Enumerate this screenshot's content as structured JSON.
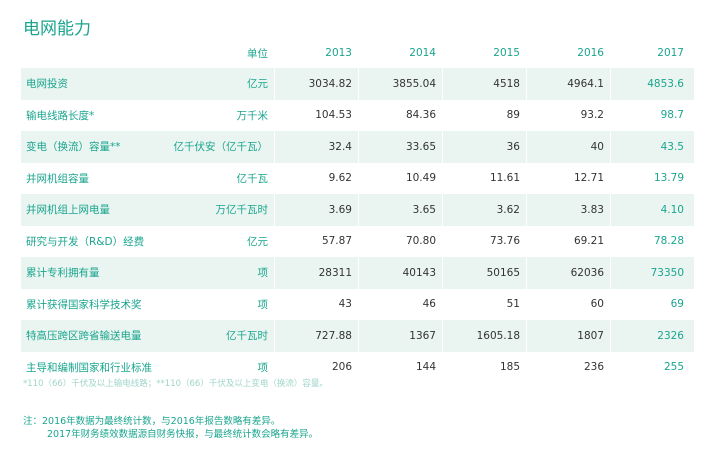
{
  "title": "电网能力",
  "header": {
    "unit": "单位",
    "years": [
      "2013",
      "2014",
      "2015",
      "2016",
      "2017"
    ]
  },
  "rows": [
    {
      "label": "电网投资",
      "unit": "亿元",
      "values": [
        "3034.82",
        "3855.04",
        "4518",
        "4964.1",
        "4853.6"
      ]
    },
    {
      "label": "输电线路长度*",
      "unit": "万千米",
      "values": [
        "104.53",
        "84.36",
        "89",
        "93.2",
        "98.7"
      ]
    },
    {
      "label": "变电（换流）容量**",
      "unit": "亿千伏安（亿千瓦）",
      "values": [
        "32.4",
        "33.65",
        "36",
        "40",
        "43.5"
      ]
    },
    {
      "label": "并网机组容量",
      "unit": "亿千瓦",
      "values": [
        "9.62",
        "10.49",
        "11.61",
        "12.71",
        "13.79"
      ]
    },
    {
      "label": "并网机组上网电量",
      "unit": "万亿千瓦时",
      "values": [
        "3.69",
        "3.65",
        "3.62",
        "3.83",
        "4.10"
      ]
    },
    {
      "label": "研究与开发（R&D）经费",
      "unit": "亿元",
      "values": [
        "57.87",
        "70.80",
        "73.76",
        "69.21",
        "78.28"
      ]
    },
    {
      "label": "累计专利拥有量",
      "unit": "项",
      "values": [
        "28311",
        "40143",
        "50165",
        "62036",
        "73350"
      ]
    },
    {
      "label": "累计获得国家科学技术奖",
      "unit": "项",
      "values": [
        "43",
        "46",
        "51",
        "60",
        "69"
      ]
    },
    {
      "label": "特高压跨区跨省输送电量",
      "unit": "亿千瓦时",
      "values": [
        "727.88",
        "1367",
        "1605.18",
        "1807",
        "2326"
      ]
    },
    {
      "label": "主导和编制国家和行业标准",
      "unit": "项",
      "values": [
        "206",
        "144",
        "185",
        "236",
        "255"
      ]
    }
  ],
  "footnote": "*110（66）千伏及以上输电线路；**110（66）千伏及以上变电（换流）容量。",
  "note": {
    "line1": "注：2016年数据为最终统计数，与2016年报告数略有差异。",
    "line2": "2017年财务绩效数据源自财务快报，与最终统计数会略有差异。"
  }
}
